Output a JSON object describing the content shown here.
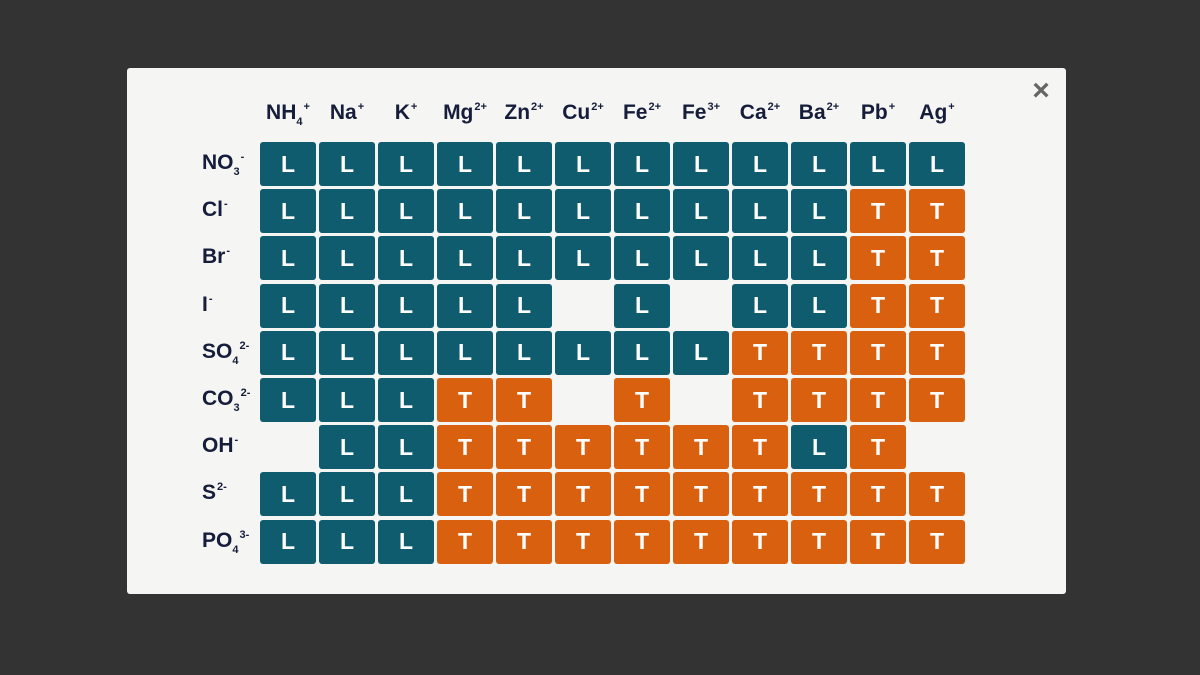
{
  "close_icon": "×",
  "colors": {
    "L": "#0e5c6e",
    "T": "#d9600f",
    "backdrop": "#333333",
    "panel": "#f5f5f3",
    "label": "#151d3b"
  },
  "cations": [
    {
      "base": "NH",
      "sub": "4",
      "sup": "+"
    },
    {
      "base": "Na",
      "sub": "",
      "sup": "+"
    },
    {
      "base": "K",
      "sub": "",
      "sup": "+"
    },
    {
      "base": "Mg",
      "sub": "",
      "sup": "2+"
    },
    {
      "base": "Zn",
      "sub": "",
      "sup": "2+"
    },
    {
      "base": "Cu",
      "sub": "",
      "sup": "2+"
    },
    {
      "base": "Fe",
      "sub": "",
      "sup": "2+"
    },
    {
      "base": "Fe",
      "sub": "",
      "sup": "3+"
    },
    {
      "base": "Ca",
      "sub": "",
      "sup": "2+"
    },
    {
      "base": "Ba",
      "sub": "",
      "sup": "2+"
    },
    {
      "base": "Pb",
      "sub": "",
      "sup": "+"
    },
    {
      "base": "Ag",
      "sub": "",
      "sup": "+"
    }
  ],
  "anions": [
    {
      "base": "NO",
      "sub": "3",
      "sup": "-"
    },
    {
      "base": "Cl",
      "sub": "",
      "sup": "-"
    },
    {
      "base": "Br",
      "sub": "",
      "sup": "-"
    },
    {
      "base": "I",
      "sub": "",
      "sup": "-"
    },
    {
      "base": "SO",
      "sub": "4",
      "sup": "2-"
    },
    {
      "base": "CO",
      "sub": "3",
      "sup": "2-"
    },
    {
      "base": "OH",
      "sub": "",
      "sup": "-"
    },
    {
      "base": "S",
      "sub": "",
      "sup": "2-"
    },
    {
      "base": "PO",
      "sub": "4",
      "sup": "3-"
    }
  ],
  "grid": [
    [
      "L",
      "L",
      "L",
      "L",
      "L",
      "L",
      "L",
      "L",
      "L",
      "L",
      "L",
      "L"
    ],
    [
      "L",
      "L",
      "L",
      "L",
      "L",
      "L",
      "L",
      "L",
      "L",
      "L",
      "T",
      "T"
    ],
    [
      "L",
      "L",
      "L",
      "L",
      "L",
      "L",
      "L",
      "L",
      "L",
      "L",
      "T",
      "T"
    ],
    [
      "L",
      "L",
      "L",
      "L",
      "L",
      "",
      "L",
      "",
      "L",
      "L",
      "T",
      "T"
    ],
    [
      "L",
      "L",
      "L",
      "L",
      "L",
      "L",
      "L",
      "L",
      "T",
      "T",
      "T",
      "T"
    ],
    [
      "L",
      "L",
      "L",
      "T",
      "T",
      "",
      "T",
      "",
      "T",
      "T",
      "T",
      "T"
    ],
    [
      "",
      "L",
      "L",
      "T",
      "T",
      "T",
      "T",
      "T",
      "T",
      "L",
      "T",
      ""
    ],
    [
      "L",
      "L",
      "L",
      "T",
      "T",
      "T",
      "T",
      "T",
      "T",
      "T",
      "T",
      "T"
    ],
    [
      "L",
      "L",
      "L",
      "T",
      "T",
      "T",
      "T",
      "T",
      "T",
      "T",
      "T",
      "T"
    ]
  ]
}
